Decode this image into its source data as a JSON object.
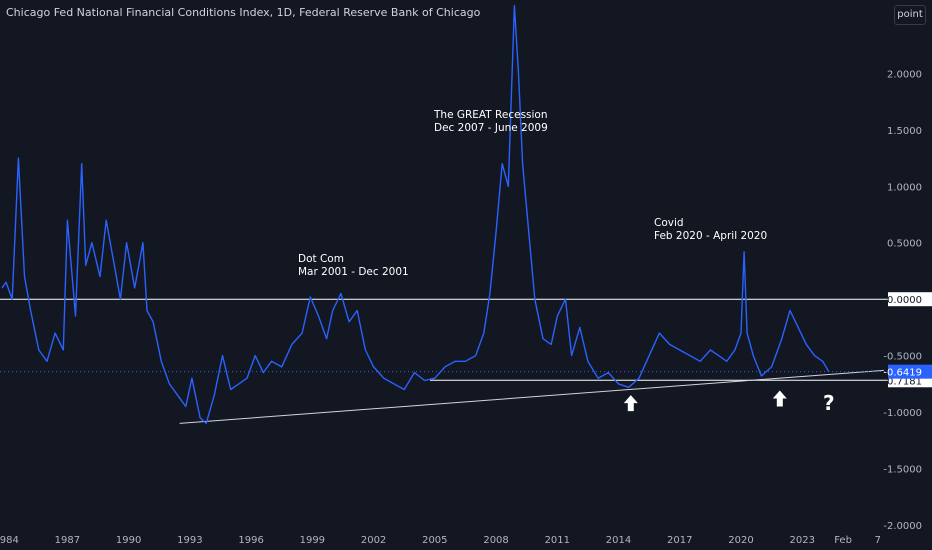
{
  "header": {
    "title": "Chicago Fed National Financial Conditions Index, 1D, Federal Reserve Bank of Chicago",
    "scale_mode": "point"
  },
  "colors": {
    "background": "#131722",
    "series": "#2962ff",
    "level_lines": "#ffffff",
    "current_badge": "#2962ff"
  },
  "price_labels": {
    "current": "-0.6419",
    "support": "-0.7181",
    "zero": "0.0000"
  },
  "annotations": {
    "dotcom_title": "Dot Com",
    "dotcom_dates": "Mar 2001 - Dec 2001",
    "gfc_title": "The GREAT Recession",
    "gfc_dates": "Dec 2007 - June 2009",
    "covid_title": "Covid",
    "covid_dates": "Feb 2020 - April 2020",
    "question": "?"
  },
  "chart_data": {
    "type": "line",
    "title": "Chicago Fed National Financial Conditions Index, 1D, Federal Reserve Bank of Chicago",
    "xlim": [
      1983.7,
      2027.2
    ],
    "ylim": [
      -2.0,
      2.65
    ],
    "x_ticks": [
      "1984",
      "1987",
      "1990",
      "1993",
      "1996",
      "1999",
      "2002",
      "2005",
      "2008",
      "2011",
      "2014",
      "2017",
      "2020",
      "2023",
      "Feb",
      "7"
    ],
    "y_ticks": [
      "2.0000",
      "1.5000",
      "1.0000",
      "0.5000",
      "0.0000",
      "-0.5000",
      "-1.0000",
      "-1.5000",
      "-2.0000"
    ],
    "y_tick_values": [
      2.0,
      1.5,
      1.0,
      0.5,
      0.0,
      -0.5,
      -1.0,
      -1.5,
      -2.0
    ],
    "series": [
      {
        "x": [
          1983.8,
          1984.0,
          1984.3,
          1984.6,
          1984.9,
          1985.2,
          1985.6,
          1986.0,
          1986.4,
          1986.8,
          1987.0,
          1987.4,
          1987.7,
          1987.9,
          1988.2,
          1988.6,
          1988.9,
          1989.2,
          1989.6,
          1989.9,
          1990.3,
          1990.7,
          1990.9,
          1991.2,
          1991.6,
          1992.0,
          1992.4,
          1992.8,
          1993.1,
          1993.5,
          1993.8,
          1994.2,
          1994.6,
          1995.0,
          1995.4,
          1995.8,
          1996.2,
          1996.6,
          1997.0,
          1997.5,
          1998.0,
          1998.5,
          1998.9,
          1999.3,
          1999.7,
          2000.0,
          2000.4,
          2000.8,
          2001.2,
          2001.6,
          2002.0,
          2002.5,
          2003.0,
          2003.5,
          2004.0,
          2004.5,
          2005.0,
          2005.5,
          2006.0,
          2006.5,
          2007.0,
          2007.4,
          2007.7,
          2008.0,
          2008.3,
          2008.6,
          2008.9,
          2009.1,
          2009.3,
          2009.6,
          2009.9,
          2010.3,
          2010.7,
          2011.0,
          2011.4,
          2011.7,
          2012.1,
          2012.5,
          2013.0,
          2013.5,
          2014.0,
          2014.5,
          2015.0,
          2015.5,
          2016.0,
          2016.5,
          2017.0,
          2017.5,
          2018.0,
          2018.5,
          2018.9,
          2019.3,
          2019.7,
          2020.0,
          2020.15,
          2020.3,
          2020.6,
          2021.0,
          2021.5,
          2022.0,
          2022.4,
          2022.8,
          2023.2,
          2023.6,
          2024.0,
          2024.3
        ],
        "y": [
          0.1,
          0.15,
          0.0,
          1.25,
          0.2,
          -0.1,
          -0.45,
          -0.55,
          -0.3,
          -0.45,
          0.7,
          -0.15,
          1.2,
          0.3,
          0.5,
          0.2,
          0.7,
          0.4,
          0.0,
          0.5,
          0.1,
          0.5,
          -0.1,
          -0.2,
          -0.55,
          -0.75,
          -0.85,
          -0.95,
          -0.7,
          -1.05,
          -1.1,
          -0.85,
          -0.5,
          -0.8,
          -0.75,
          -0.7,
          -0.5,
          -0.65,
          -0.55,
          -0.6,
          -0.4,
          -0.3,
          0.02,
          -0.15,
          -0.35,
          -0.1,
          0.05,
          -0.2,
          -0.1,
          -0.45,
          -0.6,
          -0.7,
          -0.75,
          -0.8,
          -0.65,
          -0.72,
          -0.7,
          -0.6,
          -0.55,
          -0.55,
          -0.5,
          -0.3,
          0.05,
          0.6,
          1.2,
          1.0,
          2.6,
          2.0,
          1.2,
          0.6,
          0.0,
          -0.35,
          -0.4,
          -0.15,
          0.0,
          -0.5,
          -0.25,
          -0.55,
          -0.7,
          -0.65,
          -0.75,
          -0.78,
          -0.7,
          -0.5,
          -0.3,
          -0.4,
          -0.45,
          -0.5,
          -0.55,
          -0.45,
          -0.5,
          -0.55,
          -0.45,
          -0.3,
          0.42,
          -0.3,
          -0.5,
          -0.68,
          -0.6,
          -0.35,
          -0.1,
          -0.25,
          -0.4,
          -0.5,
          -0.55,
          -0.6419
        ]
      }
    ],
    "horizontal_levels": [
      {
        "value": 0.0,
        "label": "0.0000"
      },
      {
        "value": -0.7181,
        "label": "-0.7181"
      }
    ],
    "trendline": {
      "from": [
        1992.5,
        -1.1
      ],
      "to": [
        2027.0,
        -0.63
      ]
    },
    "arrows": [
      {
        "x": 2014.6,
        "y": -0.92,
        "direction": "up"
      },
      {
        "x": 2021.9,
        "y": -0.88,
        "direction": "up"
      }
    ],
    "question_mark": {
      "x": 2024.3,
      "y": -0.92
    },
    "grid": false,
    "legend": "none"
  }
}
